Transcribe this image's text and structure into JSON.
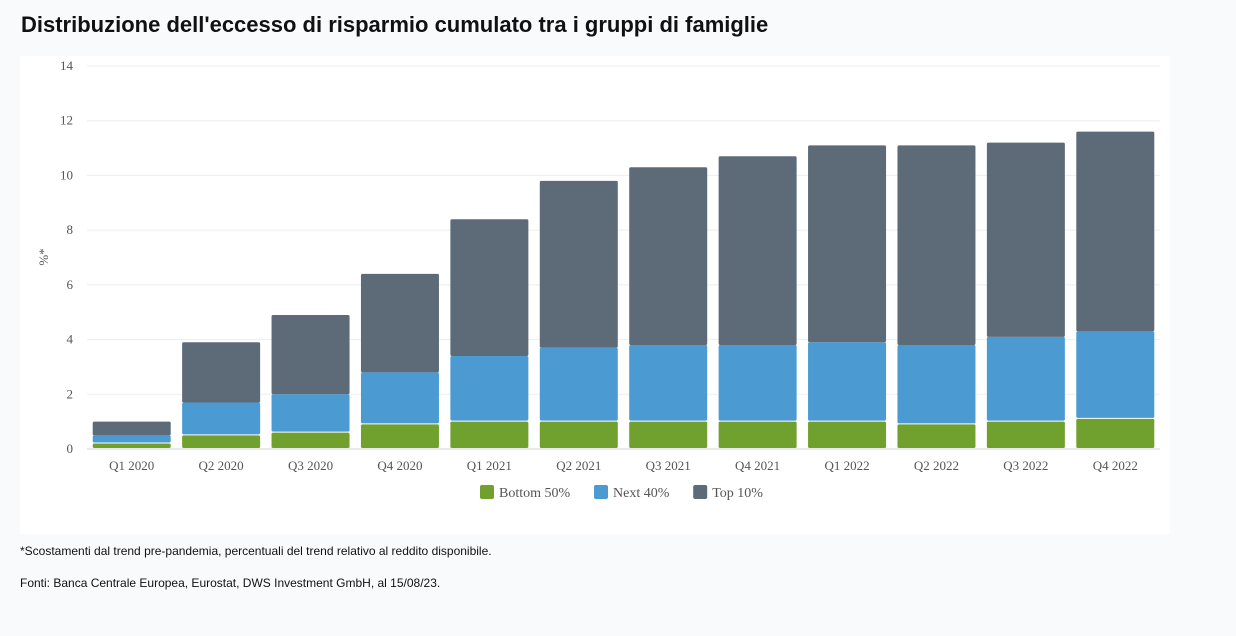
{
  "title": "Distribuzione dell'eccesso di risparmio cumulato tra i gruppi di famiglie",
  "chart_data": {
    "type": "bar",
    "stacked": true,
    "categories": [
      "Q1 2020",
      "Q2 2020",
      "Q3 2020",
      "Q4 2020",
      "Q1 2021",
      "Q2 2021",
      "Q3 2021",
      "Q4 2021",
      "Q1 2022",
      "Q2 2022",
      "Q3 2022",
      "Q4 2022"
    ],
    "series": [
      {
        "name": "Bottom 50%",
        "color": "#70a02e",
        "values": [
          0.2,
          0.5,
          0.6,
          0.9,
          1.0,
          1.0,
          1.0,
          1.0,
          1.0,
          0.9,
          1.0,
          1.1
        ]
      },
      {
        "name": "Next 40%",
        "color": "#4b9bd2",
        "values": [
          0.3,
          1.2,
          1.4,
          1.9,
          2.4,
          2.7,
          2.8,
          2.8,
          2.9,
          2.9,
          3.1,
          3.2
        ]
      },
      {
        "name": "Top 10%",
        "color": "#5d6b79",
        "values": [
          0.5,
          2.2,
          2.9,
          3.6,
          5.0,
          6.1,
          6.5,
          6.9,
          7.2,
          7.3,
          7.1,
          7.3
        ]
      }
    ],
    "ylabel": "%*",
    "ylim": [
      0,
      14
    ],
    "yticks": [
      "0",
      "2",
      "4",
      "6",
      "8",
      "10",
      "12",
      "14"
    ],
    "grid": true,
    "legend": "bottom-center"
  },
  "footnote": "*Scostamenti dal trend pre-pandemia, percentuali del trend relativo al reddito disponibile.",
  "sources": "Fonti: Banca Centrale Europea, Eurostat, DWS Investment GmbH, al 15/08/23."
}
